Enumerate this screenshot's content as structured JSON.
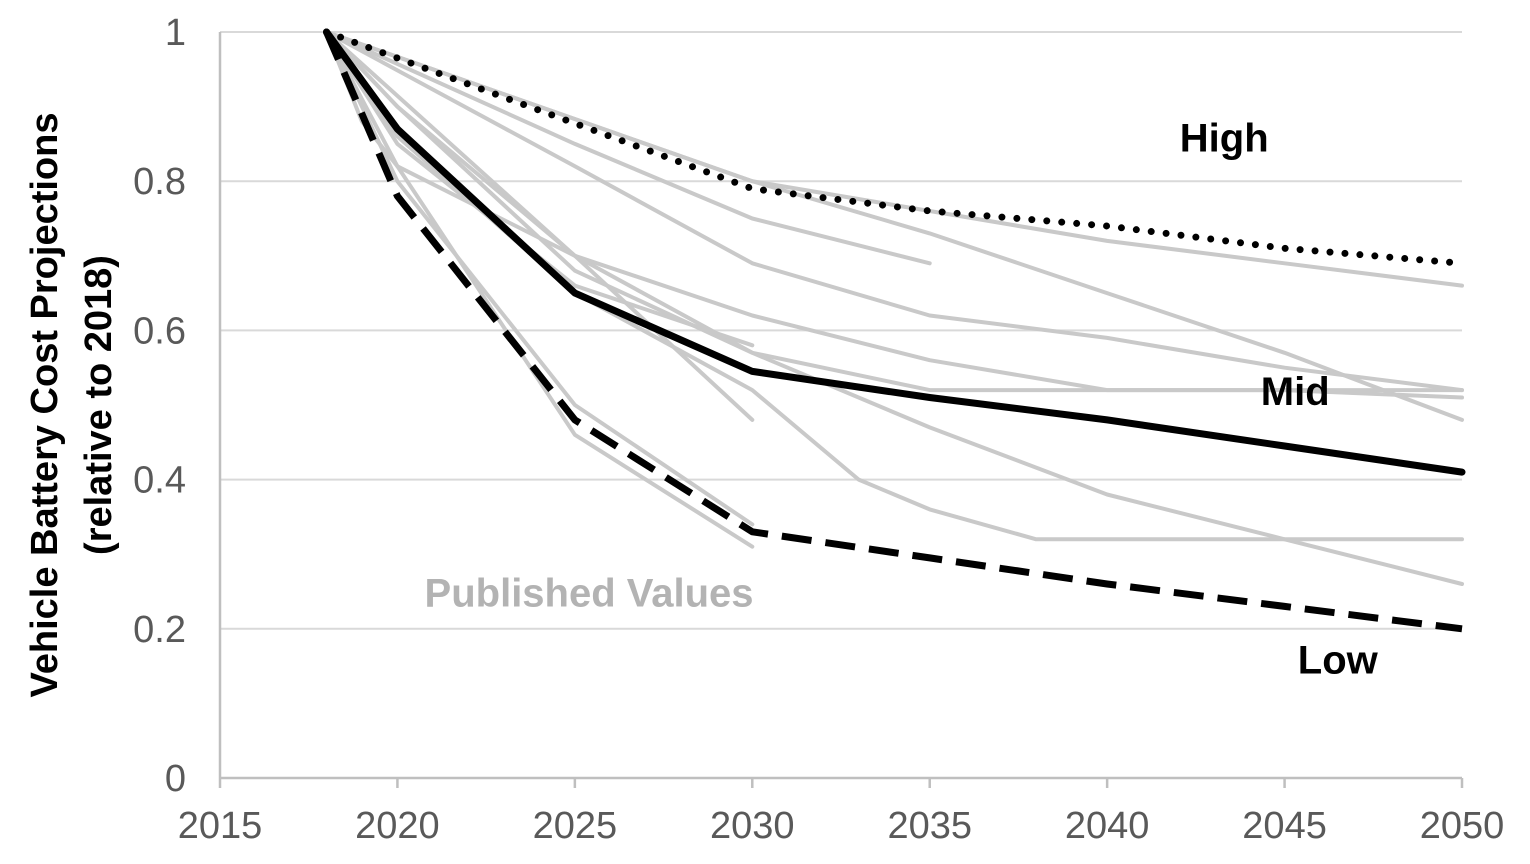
{
  "chart_data": {
    "type": "line",
    "title": "",
    "xlabel": "",
    "ylabel_lines": [
      "Vehicle Battery Cost Projections",
      "(relative to 2018)"
    ],
    "xlim": [
      2015,
      2050
    ],
    "ylim": [
      0,
      1
    ],
    "x_ticks": [
      2015,
      2020,
      2025,
      2030,
      2035,
      2040,
      2045,
      2050
    ],
    "y_ticks": [
      0,
      0.2,
      0.4,
      0.6,
      0.8,
      1
    ],
    "y_tick_labels": [
      "0",
      "0.2",
      "0.4",
      "0.6",
      "0.8",
      "1"
    ],
    "grid": "horizontal",
    "colors": {
      "published": "#c9c9c9",
      "scenario": "#000000",
      "axis": "#bfbfbf",
      "grid": "#d9d9d9",
      "tick_text": "#595959",
      "published_label": "#b3b3b3"
    },
    "annotations": [
      {
        "text": "High",
        "x": 2043.3,
        "y": 0.84,
        "color": "#000000"
      },
      {
        "text": "Mid",
        "x": 2045.3,
        "y": 0.5,
        "color": "#000000"
      },
      {
        "text": "Low",
        "x": 2046.5,
        "y": 0.14,
        "color": "#000000"
      },
      {
        "text": "Published Values",
        "x": 2025.4,
        "y": 0.23,
        "color": "#b3b3b3"
      }
    ],
    "published_series": [
      [
        [
          2018,
          1
        ],
        [
          2030,
          0.8
        ],
        [
          2035,
          0.76
        ],
        [
          2040,
          0.72
        ],
        [
          2045,
          0.69
        ],
        [
          2050,
          0.66
        ]
      ],
      [
        [
          2018,
          1
        ],
        [
          2030,
          0.8
        ],
        [
          2035,
          0.73
        ],
        [
          2040,
          0.65
        ],
        [
          2045,
          0.57
        ],
        [
          2050,
          0.48
        ]
      ],
      [
        [
          2018,
          1
        ],
        [
          2025,
          0.85
        ],
        [
          2030,
          0.75
        ],
        [
          2035,
          0.69
        ]
      ],
      [
        [
          2018,
          1
        ],
        [
          2025,
          0.82
        ],
        [
          2030,
          0.69
        ],
        [
          2035,
          0.62
        ],
        [
          2040,
          0.59
        ],
        [
          2045,
          0.55
        ],
        [
          2050,
          0.52
        ]
      ],
      [
        [
          2018,
          1
        ],
        [
          2025,
          0.7
        ],
        [
          2030,
          0.57
        ],
        [
          2035,
          0.52
        ],
        [
          2040,
          0.52
        ],
        [
          2045,
          0.52
        ],
        [
          2050,
          0.51
        ]
      ],
      [
        [
          2018,
          1
        ],
        [
          2020,
          0.82
        ],
        [
          2025,
          0.7
        ],
        [
          2030,
          0.62
        ],
        [
          2035,
          0.56
        ],
        [
          2040,
          0.52
        ],
        [
          2045,
          0.52
        ],
        [
          2050,
          0.52
        ]
      ],
      [
        [
          2018,
          1
        ],
        [
          2020,
          0.9
        ],
        [
          2025,
          0.7
        ],
        [
          2030,
          0.48
        ]
      ],
      [
        [
          2018,
          1
        ],
        [
          2020,
          0.85
        ],
        [
          2025,
          0.66
        ],
        [
          2030,
          0.58
        ]
      ],
      [
        [
          2018,
          1
        ],
        [
          2020,
          0.9
        ],
        [
          2025,
          0.68
        ],
        [
          2030,
          0.57
        ],
        [
          2035,
          0.47
        ],
        [
          2040,
          0.38
        ],
        [
          2045,
          0.32
        ],
        [
          2050,
          0.26
        ]
      ],
      [
        [
          2018,
          1
        ],
        [
          2020,
          0.86
        ],
        [
          2025,
          0.65
        ],
        [
          2030,
          0.52
        ],
        [
          2033,
          0.4
        ],
        [
          2035,
          0.36
        ],
        [
          2038,
          0.32
        ],
        [
          2040,
          0.32
        ],
        [
          2045,
          0.32
        ],
        [
          2050,
          0.32
        ]
      ],
      [
        [
          2018,
          1
        ],
        [
          2020,
          0.8
        ],
        [
          2025,
          0.5
        ],
        [
          2030,
          0.34
        ]
      ],
      [
        [
          2018,
          1
        ],
        [
          2019,
          0.88
        ],
        [
          2020,
          0.82
        ],
        [
          2025,
          0.46
        ],
        [
          2030,
          0.31
        ]
      ]
    ],
    "scenarios": [
      {
        "name": "High",
        "dash": "dotted",
        "points": [
          [
            2018,
            1
          ],
          [
            2030,
            0.79
          ],
          [
            2035,
            0.76
          ],
          [
            2040,
            0.74
          ],
          [
            2045,
            0.71
          ],
          [
            2050,
            0.69
          ]
        ]
      },
      {
        "name": "Mid",
        "dash": "solid",
        "points": [
          [
            2018,
            1
          ],
          [
            2020,
            0.87
          ],
          [
            2025,
            0.65
          ],
          [
            2030,
            0.545
          ],
          [
            2035,
            0.51
          ],
          [
            2040,
            0.48
          ],
          [
            2045,
            0.445
          ],
          [
            2050,
            0.41
          ]
        ]
      },
      {
        "name": "Low",
        "dash": "dashed",
        "points": [
          [
            2018,
            1
          ],
          [
            2020,
            0.78
          ],
          [
            2025,
            0.48
          ],
          [
            2030,
            0.33
          ],
          [
            2035,
            0.295
          ],
          [
            2040,
            0.26
          ],
          [
            2045,
            0.23
          ],
          [
            2050,
            0.2
          ]
        ]
      }
    ]
  }
}
